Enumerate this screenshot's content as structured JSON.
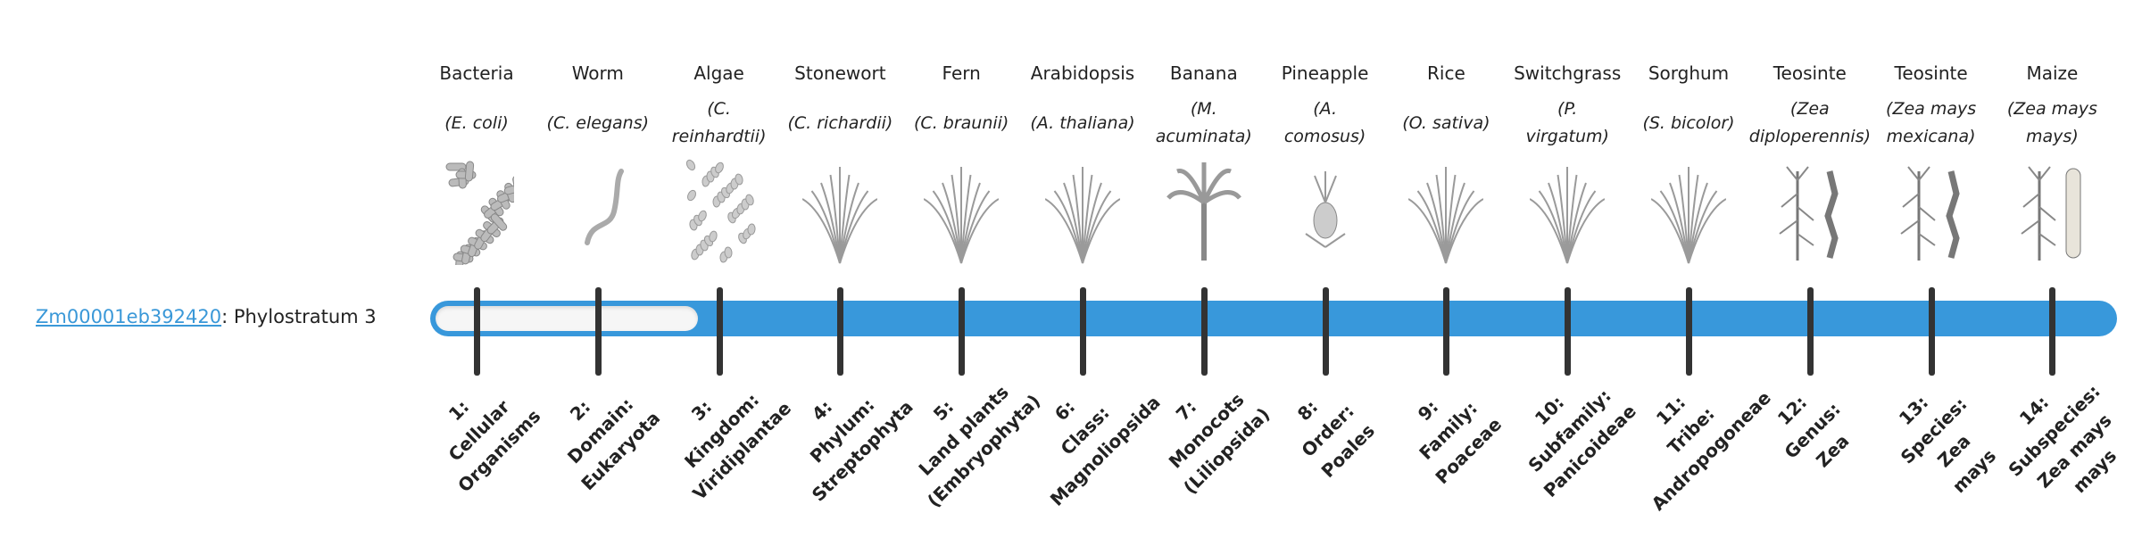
{
  "gene": {
    "id": "Zm00001eb392420",
    "separator": ": ",
    "stratum_text": "Phylostratum 3"
  },
  "phylostratum": 3,
  "colors": {
    "bar": "#3898db",
    "link": "#3a98d8",
    "tick": "#333333"
  },
  "organisms": [
    {
      "common": "Bacteria",
      "species": [
        "(E. coli)"
      ],
      "icon": "bacteria-icon",
      "stratum": [
        "1:",
        "Cellular",
        "Organisms"
      ]
    },
    {
      "common": "Worm",
      "species": [
        "(C. elegans)"
      ],
      "icon": "worm-icon",
      "stratum": [
        "2:",
        "Domain:",
        "Eukaryota"
      ]
    },
    {
      "common": "Algae",
      "species": [
        "(C.",
        "reinhardtii)"
      ],
      "icon": "algae-icon",
      "stratum": [
        "3:",
        "Kingdom:",
        "Viridiplantae"
      ]
    },
    {
      "common": "Stonewort",
      "species": [
        "(C. richardii)"
      ],
      "icon": "stonewort-icon",
      "stratum": [
        "4:",
        "Phylum:",
        "Streptophyta"
      ]
    },
    {
      "common": "Fern",
      "species": [
        "(C. braunii)"
      ],
      "icon": "fern-icon",
      "stratum": [
        "5:",
        "Land plants",
        "(Embryophyta)"
      ]
    },
    {
      "common": "Arabidopsis",
      "species": [
        "(A. thaliana)"
      ],
      "icon": "arabidopsis-icon",
      "stratum": [
        "6:",
        "Class:",
        "Magnoliopsida"
      ]
    },
    {
      "common": "Banana",
      "species": [
        "(M.",
        "acuminata)"
      ],
      "icon": "banana-icon",
      "stratum": [
        "7:",
        "Monocots",
        "(Liliopsida)"
      ]
    },
    {
      "common": "Pineapple",
      "species": [
        "(A.",
        "comosus)"
      ],
      "icon": "pineapple-icon",
      "stratum": [
        "8:",
        "Order:",
        "Poales"
      ]
    },
    {
      "common": "Rice",
      "species": [
        "(O. sativa)"
      ],
      "icon": "rice-icon",
      "stratum": [
        "9:",
        "Family:",
        "Poaceae"
      ]
    },
    {
      "common": "Switchgrass",
      "species": [
        "(P.",
        "virgatum)"
      ],
      "icon": "switchgrass-icon",
      "stratum": [
        "10:",
        "Subfamily:",
        "Panicoideae"
      ]
    },
    {
      "common": "Sorghum",
      "species": [
        "(S. bicolor)"
      ],
      "icon": "sorghum-icon",
      "stratum": [
        "11:",
        "Tribe:",
        "Andropogoneae"
      ]
    },
    {
      "common": "Teosinte",
      "species": [
        "(Zea",
        "diploperennis)"
      ],
      "icon": "teosinte-icon",
      "stratum": [
        "12:",
        "Genus:",
        "Zea"
      ]
    },
    {
      "common": "Teosinte",
      "species": [
        "(Zea mays",
        "mexicana)"
      ],
      "icon": "teosinte-mexicana-icon",
      "stratum": [
        "13:",
        "Species:",
        "Zea",
        "mays"
      ]
    },
    {
      "common": "Maize",
      "species": [
        "(Zea mays",
        "mays)"
      ],
      "icon": "maize-icon",
      "stratum": [
        "14:",
        "Subspecies:",
        "Zea mays",
        "mays"
      ]
    }
  ]
}
